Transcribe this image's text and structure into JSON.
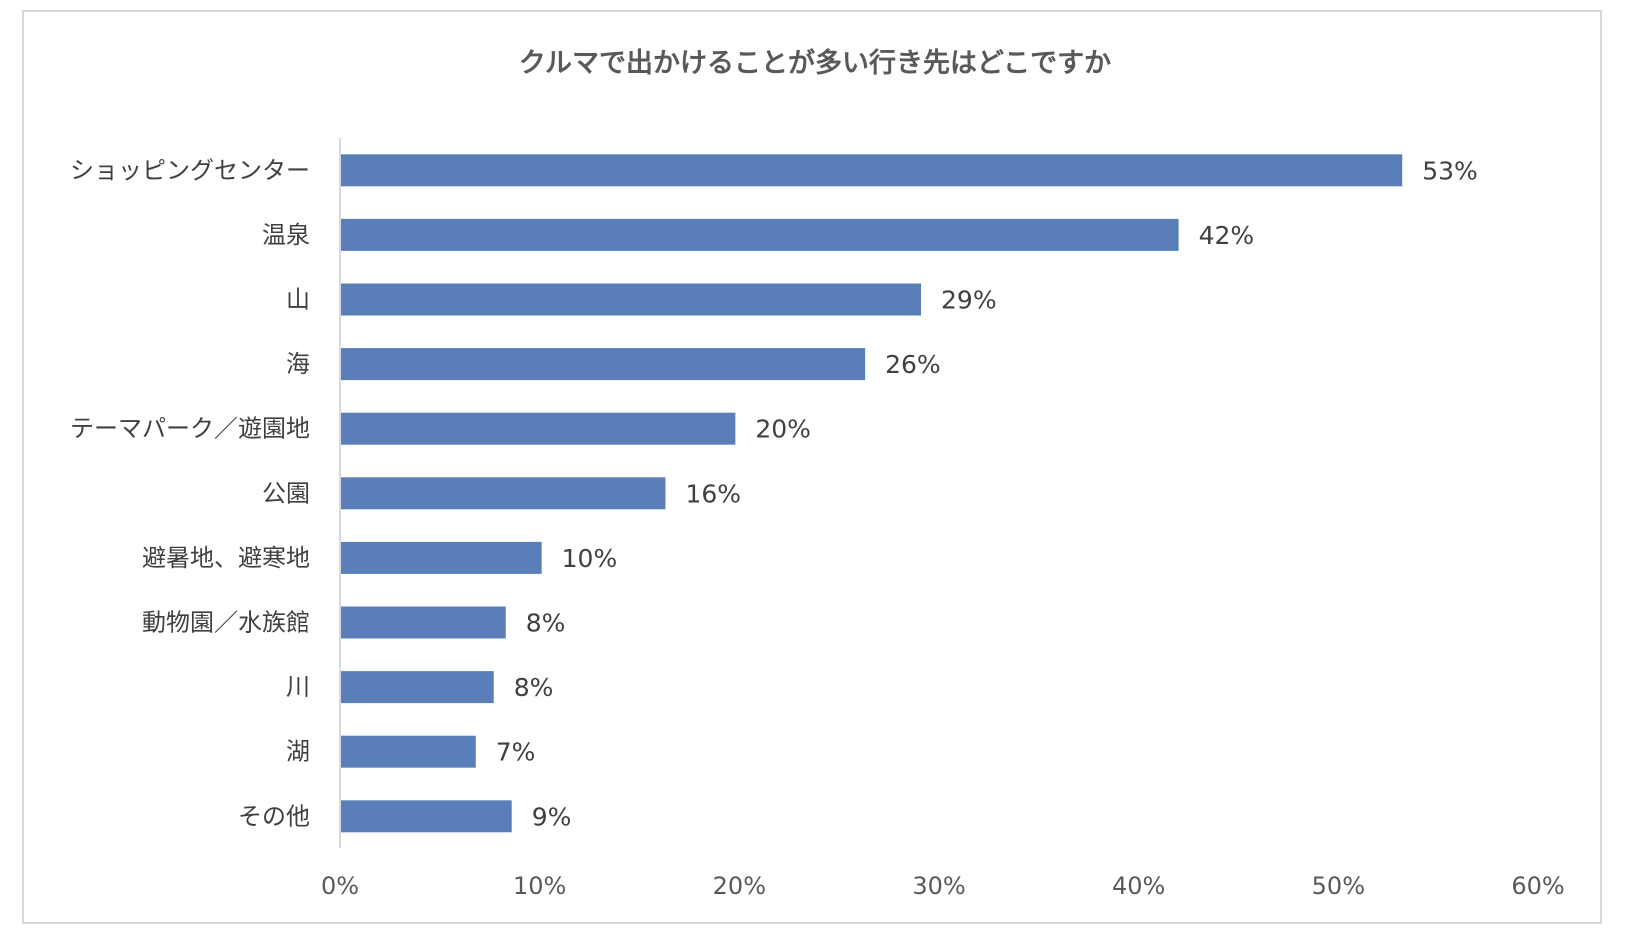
{
  "chart_data": {
    "type": "bar",
    "orientation": "horizontal",
    "title": "クルマで出かけることが多い行き先はどこですか",
    "categories": [
      "ショッピングセンター",
      "温泉",
      "山",
      "海",
      "テーマパーク／遊園地",
      "公園",
      "避暑地、避寒地",
      "動物園／水族館",
      "川",
      "湖",
      "その他"
    ],
    "values": [
      53.2,
      42.0,
      29.1,
      26.3,
      19.8,
      16.3,
      10.1,
      8.3,
      7.7,
      6.8,
      8.6
    ],
    "data_labels": [
      "53%",
      "42%",
      "29%",
      "26%",
      "20%",
      "16%",
      "10%",
      "8%",
      "8%",
      "7%",
      "9%"
    ],
    "xlim": [
      0,
      60
    ],
    "x_ticks": [
      0,
      10,
      20,
      30,
      40,
      50,
      60
    ],
    "x_tick_labels": [
      "0%",
      "10%",
      "20%",
      "30%",
      "40%",
      "50%",
      "60%"
    ],
    "grid": false,
    "legend": "none",
    "bar_color": "#5a7fb8",
    "axis_color": "#d9d9d9"
  }
}
